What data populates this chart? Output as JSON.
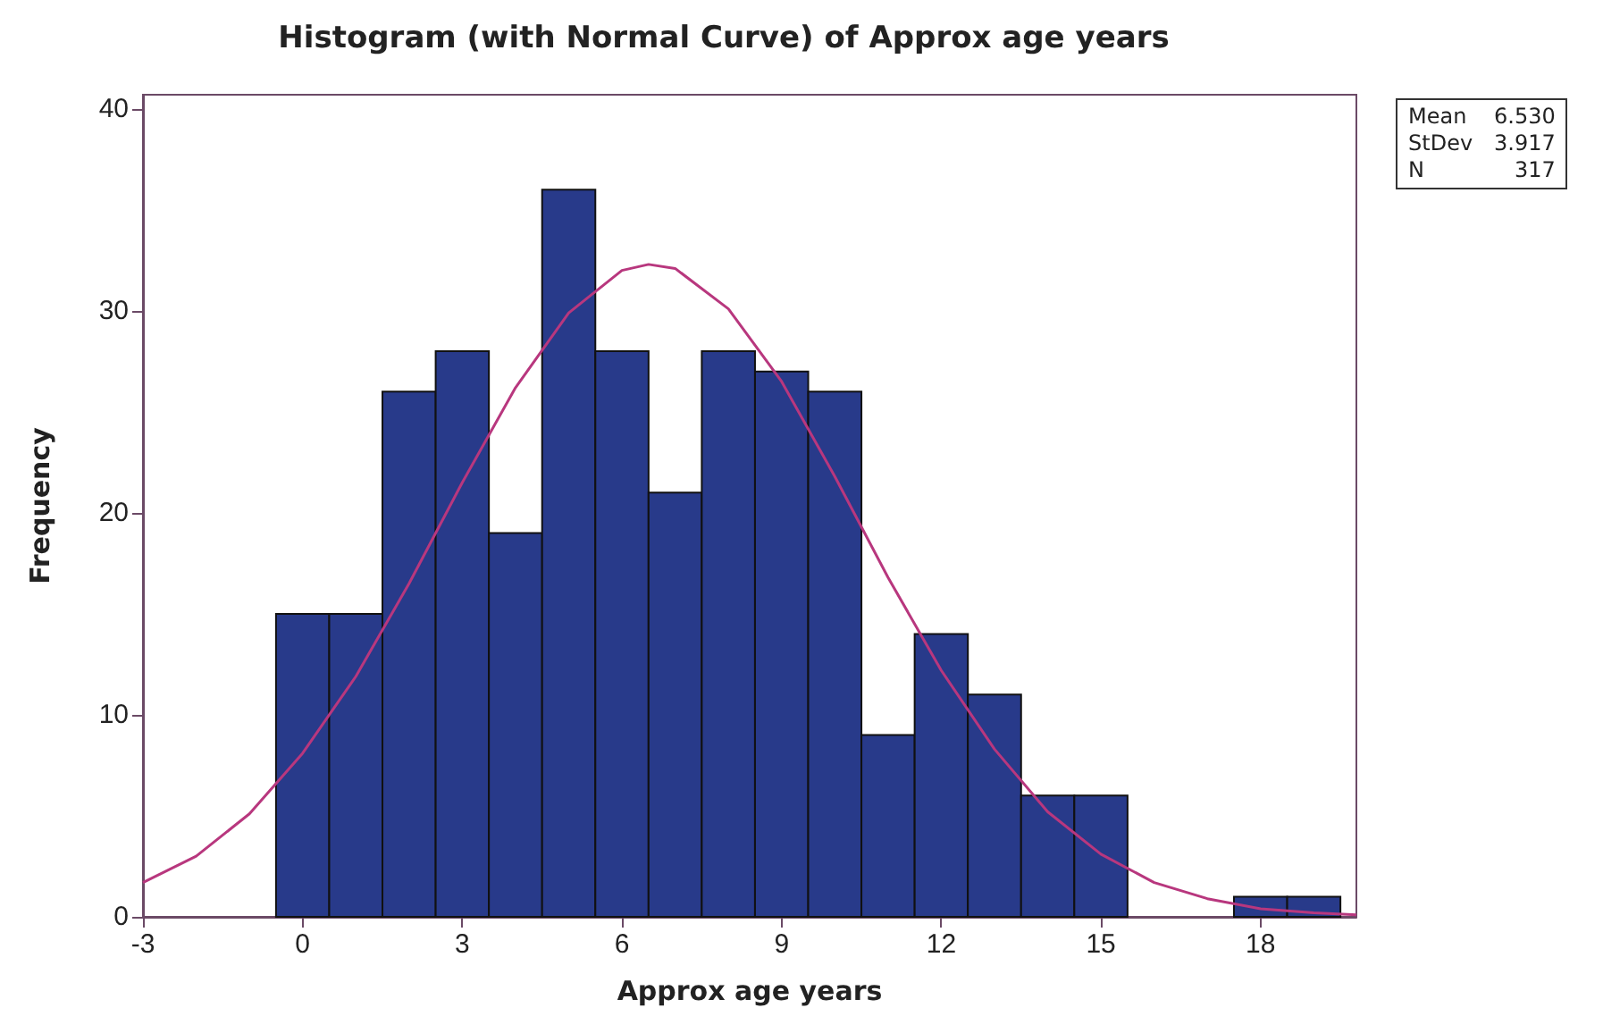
{
  "chart_data": {
    "type": "histogram",
    "title": "Histogram (with Normal Curve) of Approx age years",
    "xlabel": "Approx age years",
    "ylabel": "Frequency",
    "bins": [
      -0.5,
      0.5,
      1.5,
      2.5,
      3.5,
      4.5,
      5.5,
      6.5,
      7.5,
      8.5,
      9.5,
      10.5,
      11.5,
      12.5,
      13.5,
      14.5,
      15.5,
      16.5,
      17.5,
      18.5,
      19.5
    ],
    "values": [
      15,
      15,
      26,
      28,
      19,
      36,
      28,
      21,
      28,
      27,
      26,
      9,
      14,
      11,
      6,
      6,
      0,
      0,
      1,
      1
    ],
    "color": "#283a8a",
    "series": [
      {
        "type": "line",
        "color": "#b8377e",
        "x": [
          -3,
          -2,
          -1,
          0,
          1,
          2,
          3,
          4,
          5,
          6,
          6.5,
          7,
          8,
          9,
          10,
          11,
          12,
          13,
          14,
          15,
          16,
          17,
          18,
          19,
          19.8
        ],
        "values": [
          1.7,
          3,
          5.1,
          8.1,
          11.9,
          16.5,
          21.5,
          26.2,
          29.9,
          32,
          32.3,
          32.1,
          30.1,
          26.5,
          21.8,
          16.8,
          12.2,
          8.3,
          5.2,
          3.1,
          1.7,
          0.9,
          0.4,
          0.2,
          0.1
        ]
      }
    ],
    "xlim": [
      -3,
      19.8
    ],
    "xticks": [
      -3,
      0,
      3,
      6,
      9,
      12,
      15,
      18
    ],
    "ylim": [
      0,
      40.7
    ],
    "yticks": [
      0,
      10,
      20,
      30,
      40
    ],
    "grid": false,
    "legend": false,
    "annotations": [
      "Mean 6.530",
      "StDev 3.917",
      "N 317"
    ]
  }
}
